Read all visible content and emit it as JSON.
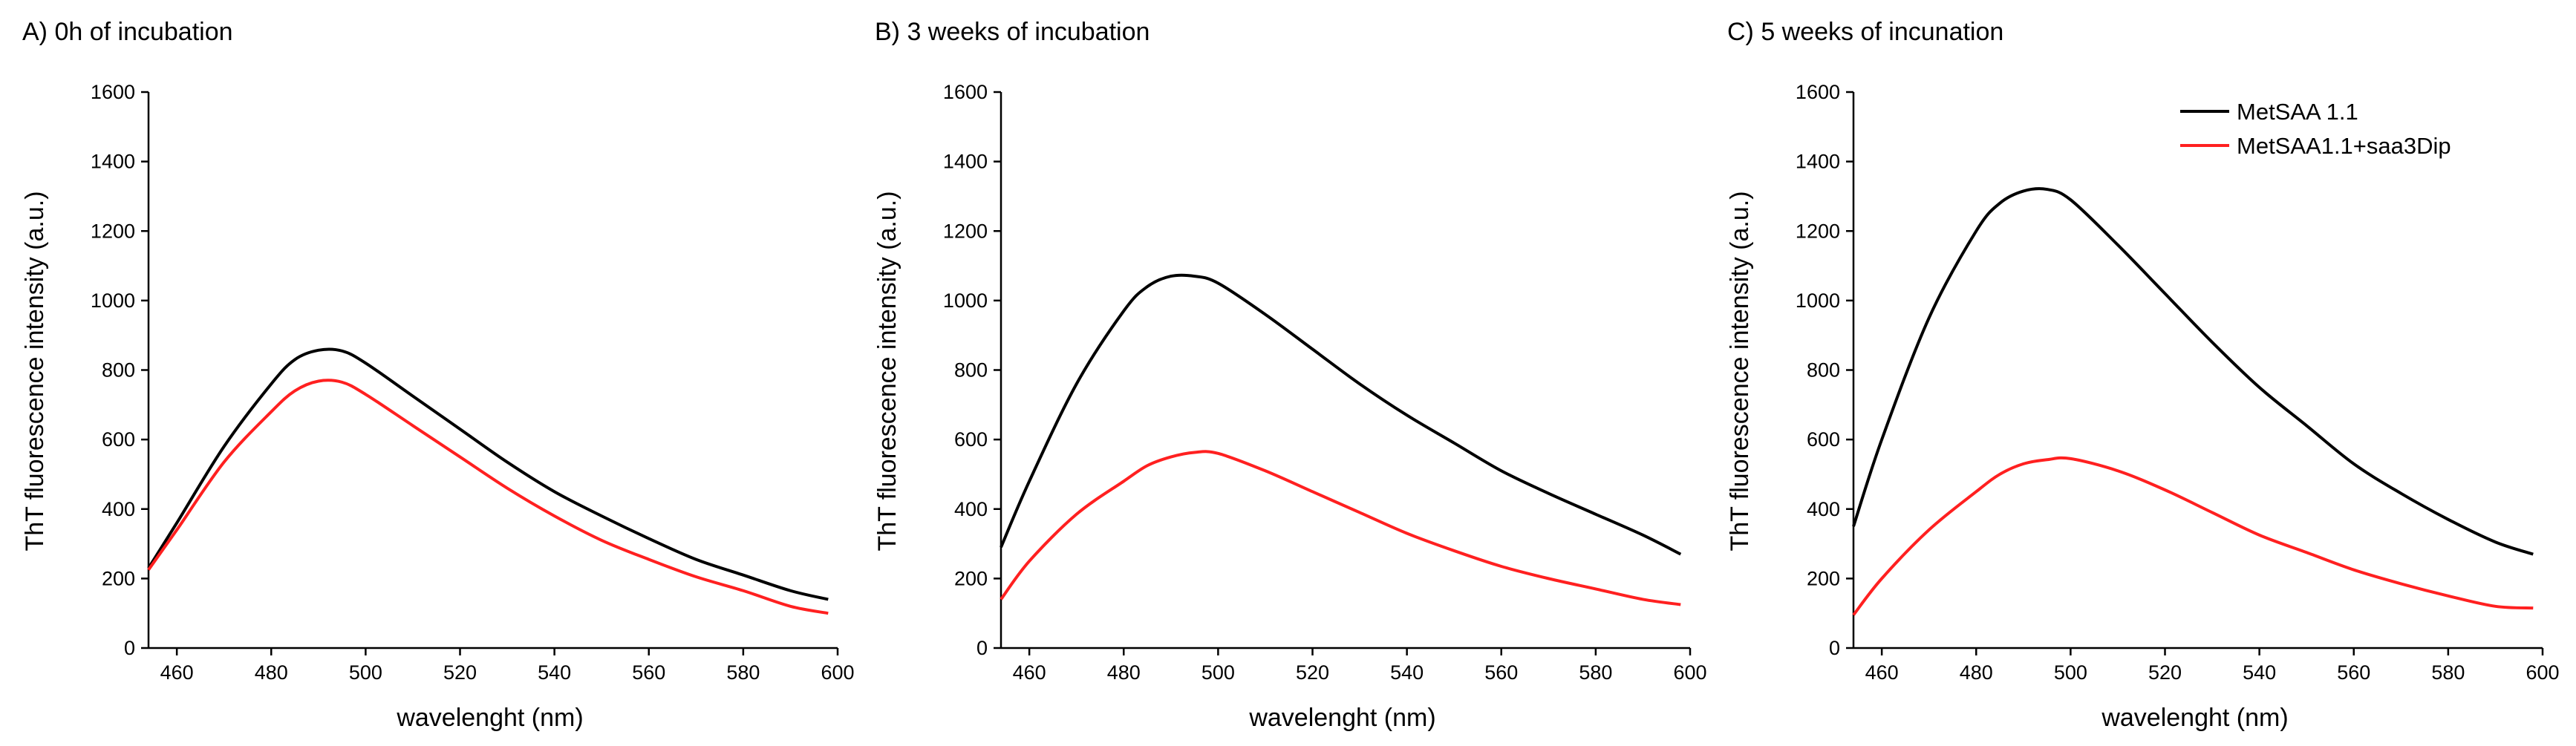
{
  "figure": {
    "series_colors": {
      "MetSAA 1.1": "#000000",
      "MetSAA1.1+saa3Dip": "#ff2020"
    }
  },
  "chart_data": [
    {
      "type": "line",
      "title": "A) 0h of incubation",
      "xlabel": "wavelenght (nm)",
      "ylabel": "ThT fluorescence intensity (a.u.)",
      "xlim": [
        454,
        600
      ],
      "ylim": [
        0,
        1600
      ],
      "xticks": [
        460,
        480,
        500,
        520,
        540,
        560,
        580,
        600
      ],
      "yticks": [
        0,
        200,
        400,
        600,
        800,
        1000,
        1200,
        1400,
        1600
      ],
      "legend": null,
      "series": [
        {
          "name": "MetSAA 1.1",
          "color": "#000000",
          "x": [
            454,
            460,
            470,
            480,
            485,
            490,
            495,
            500,
            510,
            520,
            530,
            540,
            550,
            560,
            570,
            580,
            590,
            598
          ],
          "y": [
            230,
            360,
            580,
            760,
            830,
            857,
            855,
            820,
            725,
            630,
            535,
            450,
            380,
            315,
            255,
            210,
            165,
            140
          ]
        },
        {
          "name": "MetSAA1.1+saa3Dip",
          "color": "#ff2020",
          "x": [
            454,
            460,
            470,
            480,
            485,
            490,
            495,
            500,
            510,
            520,
            530,
            540,
            550,
            560,
            570,
            580,
            590,
            598
          ],
          "y": [
            225,
            340,
            535,
            680,
            740,
            768,
            765,
            730,
            640,
            550,
            460,
            380,
            310,
            255,
            205,
            165,
            120,
            100
          ]
        }
      ]
    },
    {
      "type": "line",
      "title": "B) 3 weeks of incubation",
      "xlabel": "wavelenght (nm)",
      "ylabel": "ThT fluorescence intensity (a.u.)",
      "xlim": [
        454,
        600
      ],
      "ylim": [
        0,
        1600
      ],
      "xticks": [
        460,
        480,
        500,
        520,
        540,
        560,
        580,
        600
      ],
      "yticks": [
        0,
        200,
        400,
        600,
        800,
        1000,
        1200,
        1400,
        1600
      ],
      "legend": null,
      "series": [
        {
          "name": "MetSAA 1.1",
          "color": "#000000",
          "x": [
            454,
            460,
            470,
            480,
            485,
            490,
            495,
            500,
            510,
            520,
            530,
            540,
            550,
            560,
            570,
            580,
            590,
            598
          ],
          "y": [
            290,
            480,
            760,
            970,
            1040,
            1070,
            1070,
            1050,
            960,
            860,
            760,
            670,
            590,
            510,
            445,
            385,
            325,
            270
          ]
        },
        {
          "name": "MetSAA1.1+saa3Dip",
          "color": "#ff2020",
          "x": [
            454,
            460,
            470,
            480,
            485,
            490,
            495,
            500,
            510,
            520,
            530,
            540,
            550,
            560,
            570,
            580,
            590,
            598
          ],
          "y": [
            140,
            250,
            385,
            480,
            525,
            550,
            563,
            560,
            510,
            450,
            390,
            330,
            280,
            235,
            200,
            170,
            140,
            125
          ]
        }
      ]
    },
    {
      "type": "line",
      "title": "C) 5 weeks of incunation",
      "xlabel": "wavelenght (nm)",
      "ylabel": "ThT fluorescence intensity (a.u.)",
      "xlim": [
        454,
        600
      ],
      "ylim": [
        0,
        1600
      ],
      "xticks": [
        460,
        480,
        500,
        520,
        540,
        560,
        580,
        600
      ],
      "yticks": [
        0,
        200,
        400,
        600,
        800,
        1000,
        1200,
        1400,
        1600
      ],
      "legend": {
        "position": "top-right",
        "entries": [
          "MetSAA 1.1",
          "MetSAA1.1+saa3Dip"
        ]
      },
      "series": [
        {
          "name": "MetSAA 1.1",
          "color": "#000000",
          "x": [
            454,
            460,
            470,
            480,
            485,
            490,
            495,
            500,
            510,
            520,
            530,
            540,
            550,
            560,
            570,
            580,
            590,
            598
          ],
          "y": [
            350,
            600,
            950,
            1200,
            1280,
            1315,
            1320,
            1290,
            1160,
            1020,
            880,
            750,
            640,
            530,
            445,
            370,
            305,
            270
          ]
        },
        {
          "name": "MetSAA1.1+saa3Dip",
          "color": "#ff2020",
          "x": [
            454,
            460,
            470,
            480,
            485,
            490,
            495,
            500,
            510,
            520,
            530,
            540,
            550,
            560,
            570,
            580,
            590,
            598
          ],
          "y": [
            95,
            200,
            340,
            450,
            500,
            530,
            542,
            545,
            510,
            455,
            390,
            325,
            275,
            225,
            185,
            150,
            120,
            115
          ]
        }
      ]
    }
  ]
}
